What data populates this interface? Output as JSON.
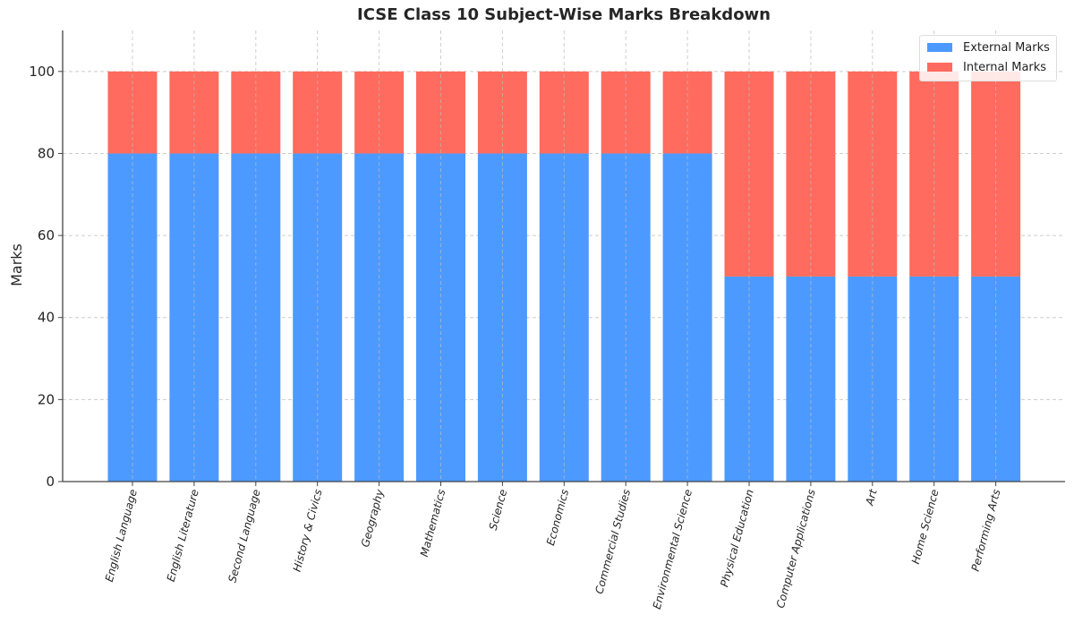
{
  "chart_data": {
    "type": "bar",
    "stacked": true,
    "title": "ICSE Class 10 Subject-Wise Marks Breakdown",
    "xlabel": "",
    "ylabel": "Marks",
    "ylim": [
      0,
      110
    ],
    "yticks": [
      0,
      20,
      40,
      60,
      80,
      100
    ],
    "grid": true,
    "legend_position": "upper right",
    "categories": [
      "English Language",
      "English Literature",
      "Second Language",
      "History & Civics",
      "Geography",
      "Mathematics",
      "Science",
      "Economics",
      "Commercial Studies",
      "Environmental Science",
      "Physical Education",
      "Computer Applications",
      "Art",
      "Home Science",
      "Performing Arts"
    ],
    "series": [
      {
        "name": "External Marks",
        "color": "#4c9aff",
        "values": [
          80,
          80,
          80,
          80,
          80,
          80,
          80,
          80,
          80,
          80,
          50,
          50,
          50,
          50,
          50
        ]
      },
      {
        "name": "Internal Marks",
        "color": "#ff6b5e",
        "values": [
          20,
          20,
          20,
          20,
          20,
          20,
          20,
          20,
          20,
          20,
          50,
          50,
          50,
          50,
          50
        ]
      }
    ]
  }
}
